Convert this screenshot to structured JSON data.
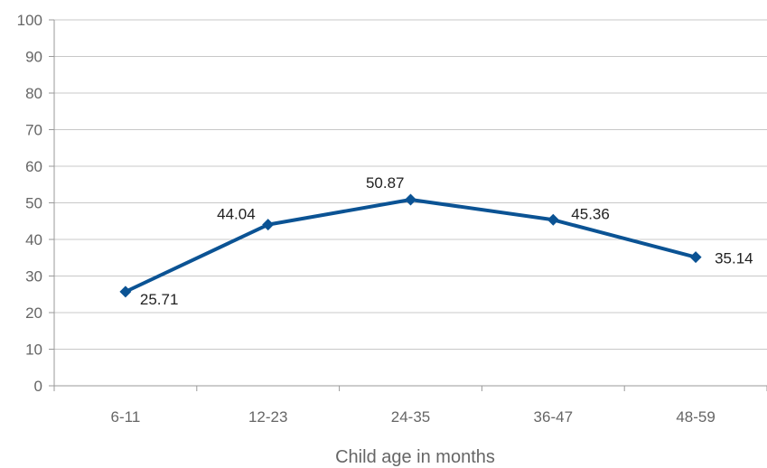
{
  "chart_data": {
    "type": "line",
    "title": "",
    "xlabel": "Child age in months",
    "ylabel": "",
    "categories": [
      "6-11",
      "12-23",
      "24-35",
      "36-47",
      "48-59"
    ],
    "series": [
      {
        "values": [
          25.71,
          44.04,
          50.87,
          45.36,
          35.14
        ],
        "color": "#0b5394"
      }
    ],
    "data_labels": [
      "25.71",
      "44.04",
      "50.87",
      "45.36",
      "35.14"
    ],
    "ylim": [
      0,
      100
    ],
    "yticks": [
      0,
      10,
      20,
      30,
      40,
      50,
      60,
      70,
      80,
      90,
      100
    ],
    "grid": true,
    "legend": "none"
  }
}
